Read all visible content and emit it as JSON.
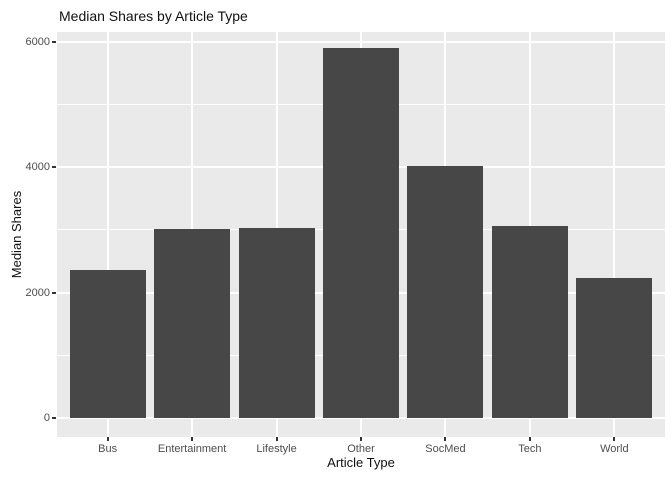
{
  "title": "Median Shares by Article Type",
  "chart_data": {
    "type": "bar",
    "title": "Median Shares by Article Type",
    "xlabel": "Article Type",
    "ylabel": "Median Shares",
    "categories": [
      "Bus",
      "Entertainment",
      "Lifestyle",
      "Other",
      "SocMed",
      "Tech",
      "World"
    ],
    "values": [
      2365,
      3005,
      3025,
      5895,
      4015,
      3055,
      2230
    ],
    "ylim": [
      0,
      6200
    ],
    "yticks": [
      0,
      2000,
      4000,
      6000
    ],
    "ytick_labels": [
      "0",
      "2000",
      "4000",
      "6000"
    ],
    "minor_gridlines": [
      1000,
      3000,
      5000
    ],
    "grid": true,
    "legend": false,
    "colors": {
      "bar_fill": "#474747",
      "panel_background": "#EAEAEA",
      "gridline": "#FFFFFF",
      "axis_text": "#4D4D4D",
      "tick_mark": "#333333",
      "title_text": "#111111"
    }
  }
}
